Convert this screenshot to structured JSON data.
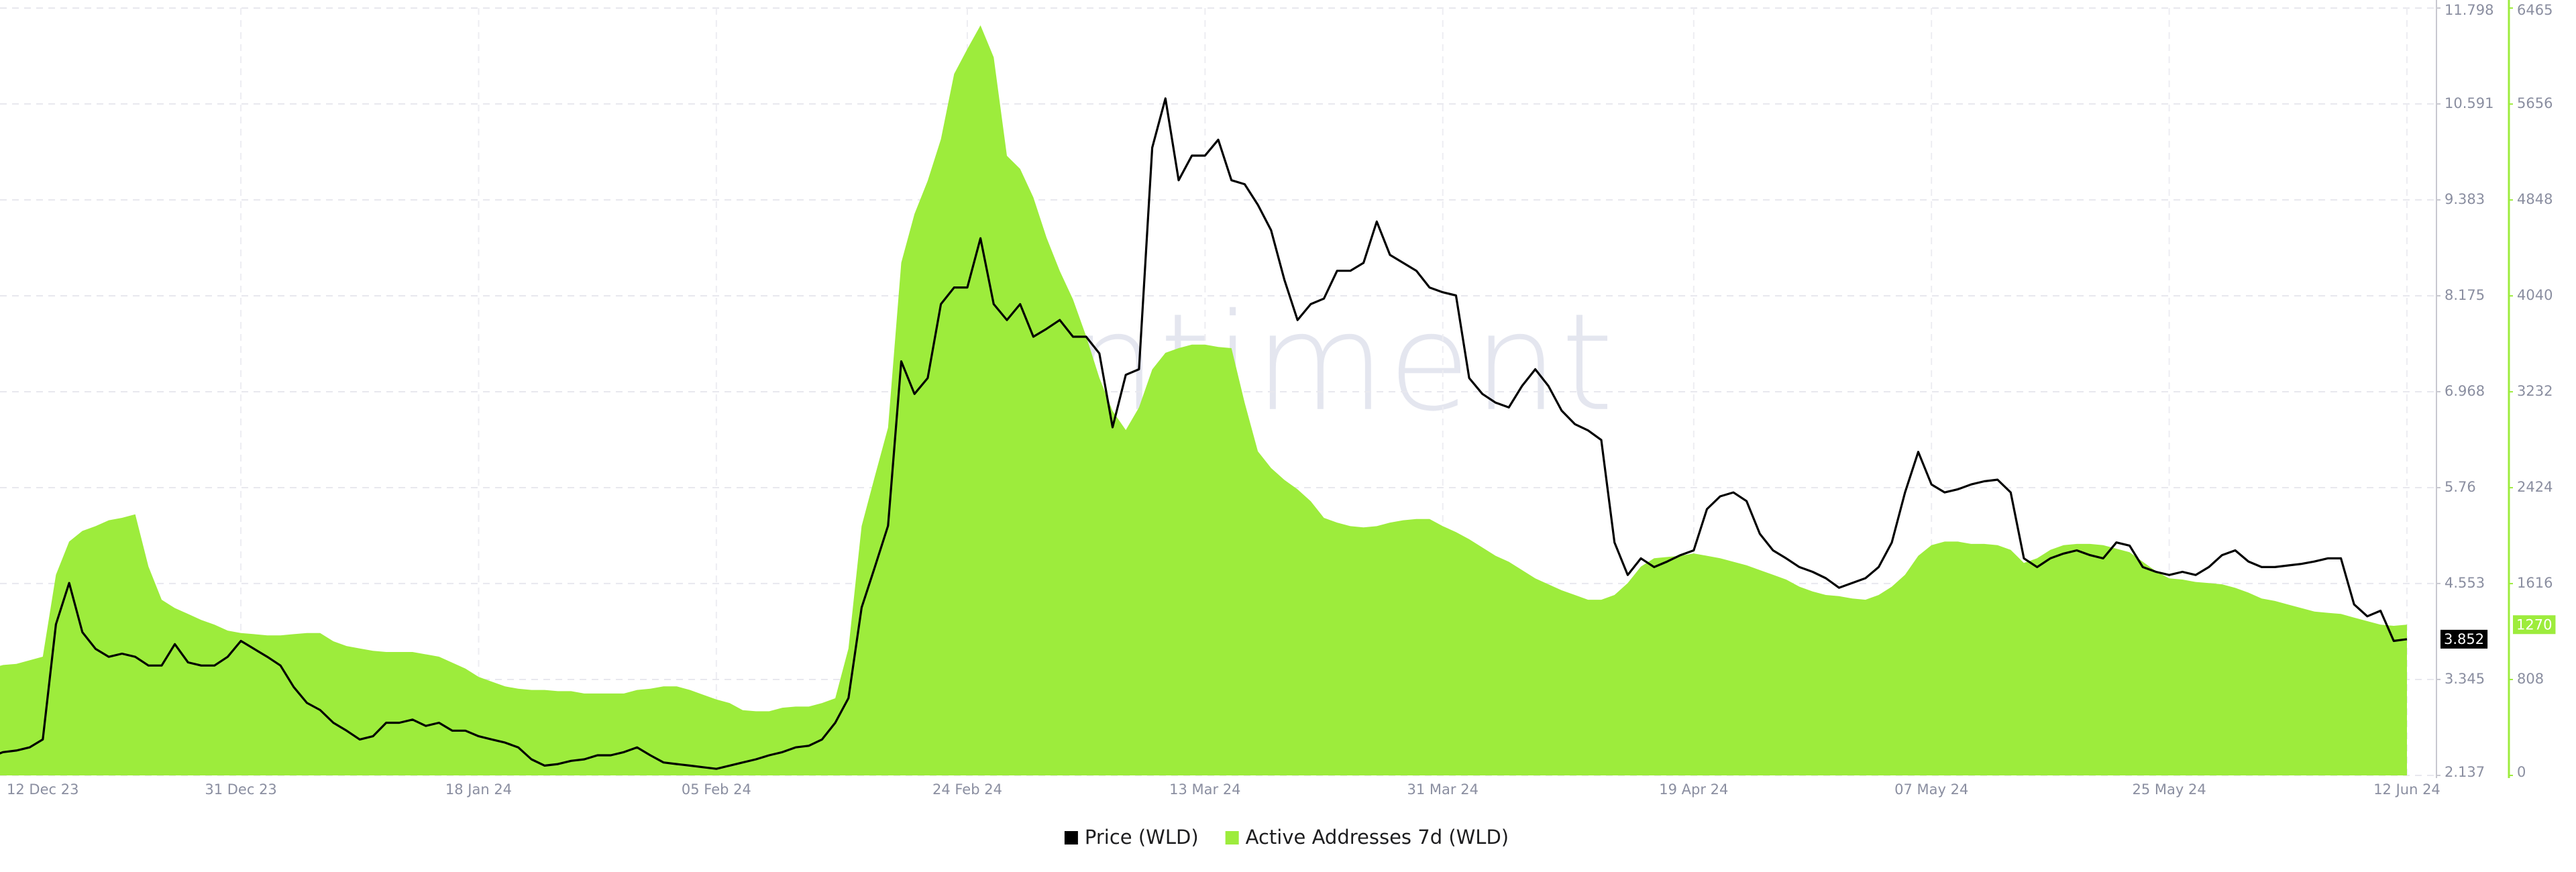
{
  "chart_data": {
    "type": "line",
    "watermark": "santiment",
    "categories": [
      "12 Dec 23",
      null,
      null,
      null,
      null,
      null,
      null,
      null,
      null,
      null,
      null,
      null,
      null,
      null,
      null,
      null,
      null,
      null,
      null,
      "31 Dec 23",
      null,
      null,
      null,
      null,
      null,
      null,
      null,
      null,
      null,
      null,
      null,
      null,
      null,
      null,
      null,
      null,
      null,
      "18 Jan 24",
      null,
      null,
      null,
      null,
      null,
      null,
      null,
      null,
      null,
      null,
      null,
      null,
      null,
      null,
      null,
      null,
      null,
      "05 Feb 24",
      null,
      null,
      null,
      null,
      null,
      null,
      null,
      null,
      null,
      null,
      null,
      null,
      null,
      null,
      null,
      null,
      null,
      null,
      "24 Feb 24",
      null,
      null,
      null,
      null,
      null,
      null,
      null,
      null,
      null,
      null,
      null,
      null,
      null,
      null,
      null,
      null,
      null,
      "13 Mar 24",
      null,
      null,
      null,
      null,
      null,
      null,
      null,
      null,
      null,
      null,
      null,
      null,
      null,
      null,
      null,
      null,
      null,
      "31 Mar 24",
      null,
      null,
      null,
      null,
      null,
      null,
      null,
      null,
      null,
      null,
      null,
      null,
      null,
      null,
      null,
      null,
      null,
      null,
      "19 Apr 24",
      null,
      null,
      null,
      null,
      null,
      null,
      null,
      null,
      null,
      null,
      null,
      null,
      null,
      null,
      null,
      null,
      null,
      "07 May 24",
      null,
      null,
      null,
      null,
      null,
      null,
      null,
      null,
      null,
      null,
      null,
      null,
      null,
      null,
      null,
      null,
      null,
      "25 May 24",
      null,
      null,
      null,
      null,
      null,
      null,
      null,
      null,
      null,
      null,
      null,
      null,
      null,
      null,
      null,
      null,
      null,
      "12 Jun 24"
    ],
    "series": [
      {
        "name": "Price (WLD)",
        "type": "line",
        "color": "#000000",
        "axis": "y",
        "values": [
          2.37,
          2.43,
          2.45,
          2.49,
          2.59,
          4.04,
          4.56,
          3.94,
          3.73,
          3.63,
          3.67,
          3.63,
          3.52,
          3.52,
          3.79,
          3.56,
          3.52,
          3.52,
          3.63,
          3.83,
          3.73,
          3.63,
          3.52,
          3.25,
          3.05,
          2.96,
          2.8,
          2.7,
          2.59,
          2.63,
          2.8,
          2.8,
          2.84,
          2.76,
          2.8,
          2.7,
          2.7,
          2.63,
          2.59,
          2.55,
          2.49,
          2.34,
          2.26,
          2.28,
          2.32,
          2.34,
          2.39,
          2.39,
          2.43,
          2.49,
          2.39,
          2.3,
          2.28,
          2.26,
          2.24,
          2.22,
          2.26,
          2.3,
          2.34,
          2.39,
          2.43,
          2.49,
          2.51,
          2.59,
          2.8,
          3.11,
          4.25,
          4.76,
          5.28,
          7.35,
          6.94,
          7.14,
          8.07,
          8.28,
          8.28,
          8.9,
          8.07,
          7.87,
          8.07,
          7.66,
          7.76,
          7.87,
          7.66,
          7.66,
          7.45,
          6.52,
          7.18,
          7.25,
          10.04,
          10.66,
          9.63,
          9.94,
          9.94,
          10.14,
          9.63,
          9.58,
          9.32,
          9.0,
          8.38,
          7.87,
          8.07,
          8.14,
          8.49,
          8.49,
          8.59,
          9.11,
          8.69,
          8.59,
          8.49,
          8.28,
          8.22,
          8.18,
          7.14,
          6.94,
          6.83,
          6.77,
          7.04,
          7.25,
          7.04,
          6.73,
          6.56,
          6.48,
          6.36,
          5.07,
          4.66,
          4.87,
          4.76,
          4.83,
          4.91,
          4.97,
          5.49,
          5.65,
          5.7,
          5.59,
          5.18,
          4.97,
          4.87,
          4.76,
          4.7,
          4.62,
          4.5,
          4.56,
          4.62,
          4.76,
          5.07,
          5.7,
          6.21,
          5.8,
          5.7,
          5.74,
          5.8,
          5.84,
          5.86,
          5.7,
          4.87,
          4.76,
          4.87,
          4.93,
          4.97,
          4.91,
          4.87,
          5.07,
          5.03,
          4.76,
          4.7,
          4.66,
          4.7,
          4.66,
          4.76,
          4.91,
          4.97,
          4.83,
          4.76,
          4.76,
          4.78,
          4.8,
          4.83,
          4.87,
          4.87,
          4.29,
          4.14,
          4.21,
          3.83,
          3.852
        ]
      },
      {
        "name": "Active Addresses 7d (WLD)",
        "type": "area",
        "color": "#9dec3c",
        "axis": "y2",
        "values": [
          900,
          930,
          940,
          970,
          1000,
          1690,
          1970,
          2060,
          2100,
          2150,
          2170,
          2200,
          1760,
          1480,
          1410,
          1360,
          1310,
          1270,
          1220,
          1200,
          1190,
          1180,
          1180,
          1190,
          1200,
          1200,
          1130,
          1090,
          1070,
          1050,
          1040,
          1040,
          1040,
          1020,
          1000,
          950,
          900,
          830,
          790,
          750,
          730,
          720,
          720,
          710,
          710,
          690,
          690,
          690,
          690,
          720,
          730,
          750,
          750,
          720,
          680,
          640,
          610,
          550,
          540,
          540,
          570,
          580,
          580,
          610,
          650,
          1070,
          2100,
          2520,
          2930,
          4320,
          4730,
          5010,
          5360,
          5910,
          6120,
          6320,
          6050,
          5220,
          5110,
          4870,
          4530,
          4250,
          4010,
          3700,
          3350,
          3070,
          2910,
          3100,
          3420,
          3560,
          3600,
          3630,
          3630,
          3610,
          3600,
          3140,
          2730,
          2590,
          2490,
          2410,
          2310,
          2170,
          2130,
          2100,
          2090,
          2100,
          2130,
          2150,
          2160,
          2160,
          2100,
          2050,
          1990,
          1920,
          1850,
          1800,
          1730,
          1660,
          1610,
          1560,
          1520,
          1480,
          1480,
          1520,
          1620,
          1760,
          1830,
          1840,
          1850,
          1870,
          1850,
          1830,
          1800,
          1770,
          1730,
          1690,
          1650,
          1590,
          1550,
          1520,
          1510,
          1490,
          1480,
          1520,
          1590,
          1690,
          1850,
          1940,
          1970,
          1970,
          1950,
          1950,
          1940,
          1900,
          1790,
          1830,
          1900,
          1940,
          1950,
          1950,
          1940,
          1910,
          1880,
          1800,
          1720,
          1660,
          1650,
          1630,
          1620,
          1610,
          1580,
          1540,
          1490,
          1470,
          1440,
          1410,
          1380,
          1370,
          1360,
          1330,
          1300,
          1270,
          1260,
          1270
        ]
      }
    ],
    "ylim": [
      2.137,
      11.798
    ],
    "yticks": [
      2.137,
      3.345,
      4.553,
      5.76,
      6.968,
      8.175,
      9.383,
      10.591,
      11.798
    ],
    "y2lim": [
      0,
      6465
    ],
    "y2ticks": [
      0,
      808,
      1616,
      2424,
      3232,
      4040,
      4848,
      5656,
      6465
    ],
    "grid": true,
    "legend": "bottom"
  }
}
